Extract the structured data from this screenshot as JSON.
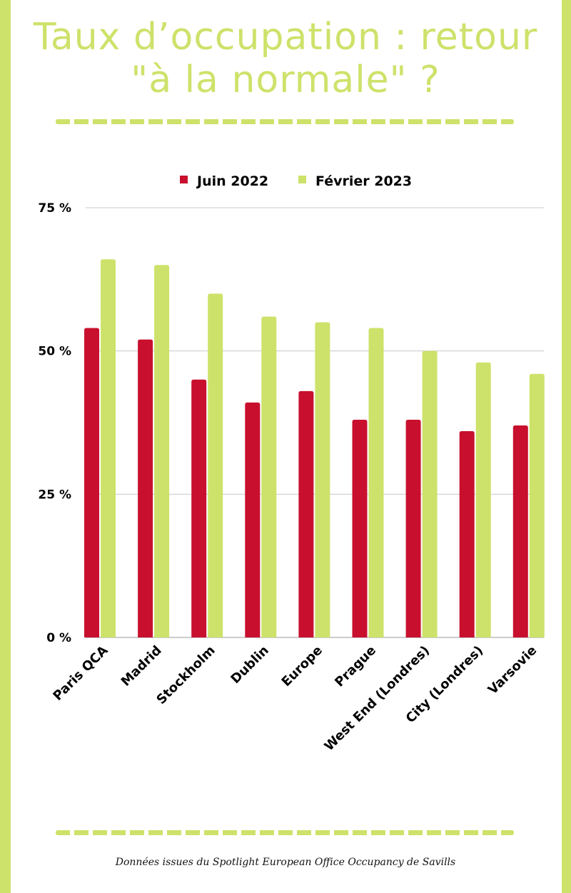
{
  "title": "Taux d’occupation : retour \"à la normale\" ?",
  "source": "Données issues du Spotlight European Office Occupancy de Savills",
  "colors": {
    "frame": "#cde26a",
    "juin_2022": "#c8102e",
    "fevrier_2023": "#cde26a"
  },
  "chart_data": {
    "type": "bar",
    "title": "",
    "xlabel": "",
    "ylabel": "",
    "ylim": [
      0,
      75
    ],
    "yticks": [
      0,
      25,
      50,
      75
    ],
    "ytick_labels": [
      "0 %",
      "25 %",
      "50 %",
      "75 %"
    ],
    "grid": true,
    "legend_position": "top",
    "categories": [
      "Paris QCA",
      "Madrid",
      "Stockholm",
      "Dublin",
      "Europe",
      "Prague",
      "West End (Londres)",
      "City (Londres)",
      "Varsovie"
    ],
    "series": [
      {
        "name": "Juin 2022",
        "color": "#c8102e",
        "values": [
          54,
          52,
          45,
          41,
          43,
          38,
          38,
          36,
          37
        ]
      },
      {
        "name": "Février 2023",
        "color": "#cde26a",
        "values": [
          66,
          65,
          60,
          56,
          55,
          54,
          50,
          48,
          46
        ]
      }
    ]
  }
}
